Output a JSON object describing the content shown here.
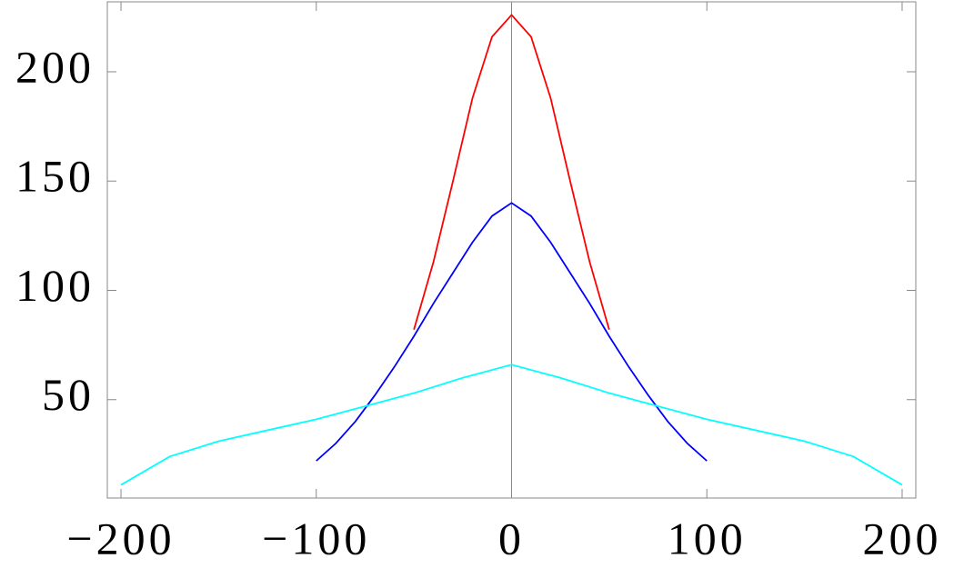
{
  "chart_data": {
    "type": "line",
    "xlim": [
      -207,
      207
    ],
    "ylim": [
      5,
      232
    ],
    "xticks": [
      {
        "value": -200,
        "label": "−200"
      },
      {
        "value": -100,
        "label": "−100"
      },
      0,
      100,
      200
    ],
    "yticks": [
      50,
      100,
      150,
      200
    ],
    "series": [
      {
        "color": "#ff0000",
        "x": [
          -50,
          -40,
          -30,
          -20,
          -10,
          0,
          10,
          20,
          30,
          40,
          50
        ],
        "values": [
          82,
          113,
          150,
          188,
          216,
          226,
          216,
          188,
          150,
          113,
          82
        ]
      },
      {
        "color": "#0000ff",
        "x": [
          -100,
          -90,
          -80,
          -70,
          -60,
          -50,
          -40,
          -30,
          -20,
          -10,
          0,
          10,
          20,
          30,
          40,
          50,
          60,
          70,
          80,
          90,
          100
        ],
        "values": [
          22,
          30,
          40,
          52,
          65,
          79,
          94,
          108,
          122,
          134,
          140,
          134,
          122,
          108,
          94,
          79,
          65,
          52,
          40,
          30,
          22
        ]
      },
      {
        "color": "#00ffff",
        "x": [
          -200,
          -175,
          -150,
          -125,
          -100,
          -75,
          -50,
          -25,
          0,
          25,
          50,
          75,
          100,
          125,
          150,
          175,
          200
        ],
        "values": [
          11,
          24,
          31,
          36,
          41,
          47,
          53,
          60,
          66,
          60,
          53,
          47,
          41,
          36,
          31,
          24,
          11
        ]
      }
    ]
  }
}
